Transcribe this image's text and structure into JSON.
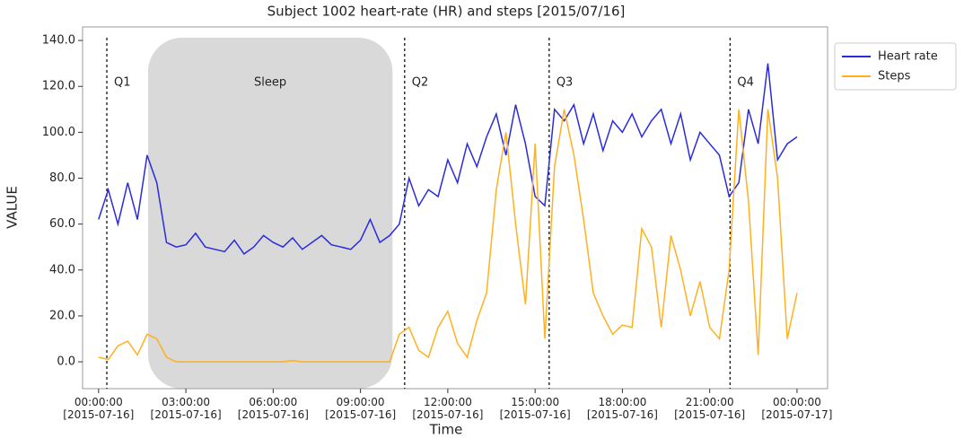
{
  "chart_data": {
    "type": "line",
    "title": "Subject 1002 heart-rate (HR) and steps [2015/07/16]",
    "x_label": "Time",
    "y_label": "VALUE",
    "x": [
      "2015-07-16T00:00",
      "2015-07-16T00:20",
      "2015-07-16T00:40",
      "2015-07-16T01:00",
      "2015-07-16T01:20",
      "2015-07-16T01:40",
      "2015-07-16T02:00",
      "2015-07-16T02:20",
      "2015-07-16T02:40",
      "2015-07-16T03:00",
      "2015-07-16T03:20",
      "2015-07-16T03:40",
      "2015-07-16T04:00",
      "2015-07-16T04:20",
      "2015-07-16T04:40",
      "2015-07-16T05:00",
      "2015-07-16T05:20",
      "2015-07-16T05:40",
      "2015-07-16T06:00",
      "2015-07-16T06:20",
      "2015-07-16T06:40",
      "2015-07-16T07:00",
      "2015-07-16T07:20",
      "2015-07-16T07:40",
      "2015-07-16T08:00",
      "2015-07-16T08:20",
      "2015-07-16T08:40",
      "2015-07-16T09:00",
      "2015-07-16T09:20",
      "2015-07-16T09:40",
      "2015-07-16T10:00",
      "2015-07-16T10:20",
      "2015-07-16T10:40",
      "2015-07-16T11:00",
      "2015-07-16T11:20",
      "2015-07-16T11:40",
      "2015-07-16T12:00",
      "2015-07-16T12:20",
      "2015-07-16T12:40",
      "2015-07-16T13:00",
      "2015-07-16T13:20",
      "2015-07-16T13:40",
      "2015-07-16T14:00",
      "2015-07-16T14:20",
      "2015-07-16T14:40",
      "2015-07-16T15:00",
      "2015-07-16T15:20",
      "2015-07-16T15:40",
      "2015-07-16T16:00",
      "2015-07-16T16:20",
      "2015-07-16T16:40",
      "2015-07-16T17:00",
      "2015-07-16T17:20",
      "2015-07-16T17:40",
      "2015-07-16T18:00",
      "2015-07-16T18:20",
      "2015-07-16T18:40",
      "2015-07-16T19:00",
      "2015-07-16T19:20",
      "2015-07-16T19:40",
      "2015-07-16T20:00",
      "2015-07-16T20:20",
      "2015-07-16T20:40",
      "2015-07-16T21:00",
      "2015-07-16T21:20",
      "2015-07-16T21:40",
      "2015-07-16T22:00",
      "2015-07-16T22:20",
      "2015-07-16T22:40",
      "2015-07-16T23:00",
      "2015-07-16T23:20",
      "2015-07-16T23:40",
      "2015-07-17T00:00"
    ],
    "series": [
      {
        "name": "Heart rate",
        "color": "#2b2bdc",
        "values": [
          62,
          75,
          60,
          78,
          62,
          90,
          78,
          52,
          50,
          51,
          56,
          50,
          49,
          48,
          53,
          47,
          50,
          55,
          52,
          50,
          54,
          49,
          52,
          55,
          51,
          50,
          49,
          53,
          62,
          52,
          55,
          60,
          80,
          68,
          75,
          72,
          88,
          78,
          95,
          85,
          98,
          108,
          90,
          112,
          95,
          72,
          68,
          110,
          105,
          112,
          95,
          108,
          92,
          105,
          100,
          108,
          98,
          105,
          110,
          95,
          108,
          88,
          100,
          95,
          90,
          72,
          78,
          110,
          95,
          130,
          88,
          95,
          98
        ]
      },
      {
        "name": "Steps",
        "color": "#ffb020",
        "values": [
          2,
          1,
          7,
          9,
          3,
          12,
          10,
          2,
          0,
          0,
          0,
          0,
          0,
          0,
          0,
          0,
          0,
          0,
          0,
          0,
          0.5,
          0,
          0,
          0,
          0,
          0,
          0,
          0,
          0,
          0,
          0,
          12,
          15,
          5,
          2,
          15,
          22,
          8,
          2,
          18,
          30,
          75,
          100,
          60,
          25,
          95,
          10,
          85,
          110,
          90,
          62,
          30,
          20,
          12,
          16,
          15,
          58,
          50,
          15,
          55,
          40,
          20,
          35,
          15,
          10,
          40,
          110,
          70,
          3,
          110,
          80,
          10,
          30
        ]
      }
    ],
    "xlim": [
      "2015-07-15T23:27",
      "2015-07-17T01:03"
    ],
    "xticks": [
      {
        "value": "2015-07-16T00:00",
        "label": "00:00:00\n[2015-07-16]"
      },
      {
        "value": "2015-07-16T03:00",
        "label": "03:00:00\n[2015-07-16]"
      },
      {
        "value": "2015-07-16T06:00",
        "label": "06:00:00\n[2015-07-16]"
      },
      {
        "value": "2015-07-16T09:00",
        "label": "09:00:00\n[2015-07-16]"
      },
      {
        "value": "2015-07-16T12:00",
        "label": "12:00:00\n[2015-07-16]"
      },
      {
        "value": "2015-07-16T15:00",
        "label": "15:00:00\n[2015-07-16]"
      },
      {
        "value": "2015-07-16T18:00",
        "label": "18:00:00\n[2015-07-16]"
      },
      {
        "value": "2015-07-16T21:00",
        "label": "21:00:00\n[2015-07-16]"
      },
      {
        "value": "2015-07-17T00:00",
        "label": "00:00:00\n[2015-07-17]"
      }
    ],
    "ylim": [
      -11.7,
      145.9
    ],
    "yticks": [
      {
        "value": 0,
        "label": "0.0"
      },
      {
        "value": 20,
        "label": "20.0"
      },
      {
        "value": 40,
        "label": "40.0"
      },
      {
        "value": 60,
        "label": "60.0"
      },
      {
        "value": 80,
        "label": "80.0"
      },
      {
        "value": 100,
        "label": "100.0"
      },
      {
        "value": 120,
        "label": "120.0"
      },
      {
        "value": 140,
        "label": "140.0"
      }
    ],
    "annotations": [
      {
        "label": "Q1",
        "x": "2015-07-16T00:17"
      },
      {
        "label": "Q2",
        "x": "2015-07-16T10:31"
      },
      {
        "label": "Q3",
        "x": "2015-07-16T15:29"
      },
      {
        "label": "Q4",
        "x": "2015-07-16T21:42"
      }
    ],
    "shaded_region": {
      "label": "Sleep",
      "start": "2015-07-16T01:42",
      "end": "2015-07-16T10:06",
      "color": "#d9d9d9"
    },
    "grid": false,
    "legend": "outside-right"
  }
}
